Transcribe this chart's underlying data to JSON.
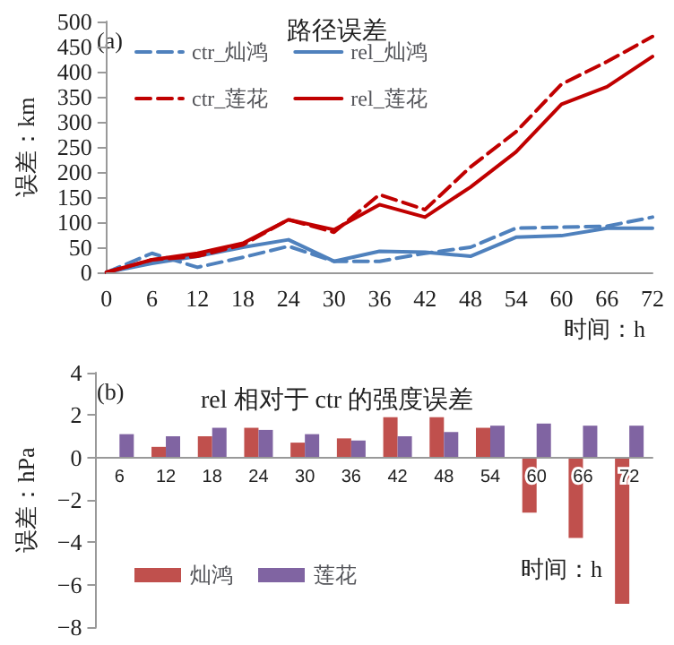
{
  "chart_data": [
    {
      "type": "line",
      "title": "路径误差",
      "xlabel": "时间：h",
      "ylabel": "误差：km",
      "annotations": [
        "(a)"
      ],
      "categories": [
        "0",
        "6",
        "12",
        "18",
        "24",
        "30",
        "36",
        "42",
        "48",
        "54",
        "60",
        "66",
        "72"
      ],
      "series": [
        {
          "name": "ctr_灿鸿",
          "color": "#4f81bd",
          "line_style": "dashed",
          "values": [
            0,
            38,
            10,
            30,
            52,
            22,
            22,
            38,
            50,
            88,
            90,
            92,
            110
          ]
        },
        {
          "name": "rel_灿鸿",
          "color": "#4f81bd",
          "line_style": "solid",
          "values": [
            0,
            18,
            32,
            50,
            65,
            22,
            42,
            40,
            32,
            70,
            73,
            88,
            88
          ]
        },
        {
          "name": "ctr_莲花",
          "color": "#c00000",
          "line_style": "dashed",
          "values": [
            0,
            25,
            32,
            55,
            105,
            80,
            155,
            125,
            210,
            280,
            375,
            420,
            470
          ]
        },
        {
          "name": "rel_莲花",
          "color": "#c00000",
          "line_style": "solid",
          "values": [
            0,
            25,
            38,
            58,
            105,
            85,
            135,
            110,
            170,
            240,
            335,
            370,
            430
          ]
        }
      ],
      "ylim": [
        0,
        500
      ],
      "yticks": [
        0,
        50,
        100,
        150,
        200,
        250,
        300,
        350,
        400,
        450,
        500
      ],
      "grid": false,
      "legend": "top left",
      "marker": "none"
    },
    {
      "type": "bar",
      "title": "rel 相对于 ctr 的强度误差",
      "xlabel": "时间：h",
      "ylabel": "误差：hPa",
      "annotations": [
        "(b)"
      ],
      "categories": [
        "6",
        "12",
        "18",
        "24",
        "30",
        "36",
        "42",
        "48",
        "54",
        "60",
        "66",
        "72"
      ],
      "series": [
        {
          "name": "灿鸿",
          "color": "#c0504d",
          "values": [
            null,
            0.5,
            1.0,
            1.4,
            0.7,
            0.9,
            1.9,
            1.9,
            1.4,
            -2.6,
            -3.8,
            -6.9
          ]
        },
        {
          "name": "莲花",
          "color": "#8064a2",
          "values": [
            1.1,
            1.0,
            1.4,
            1.3,
            1.1,
            0.8,
            1.0,
            1.2,
            1.5,
            1.6,
            1.5,
            1.5
          ]
        }
      ],
      "ylim": [
        -8,
        4
      ],
      "yticks": [
        -8,
        -6,
        -4,
        -2,
        0,
        2,
        4
      ],
      "legend": "bottom left"
    }
  ]
}
